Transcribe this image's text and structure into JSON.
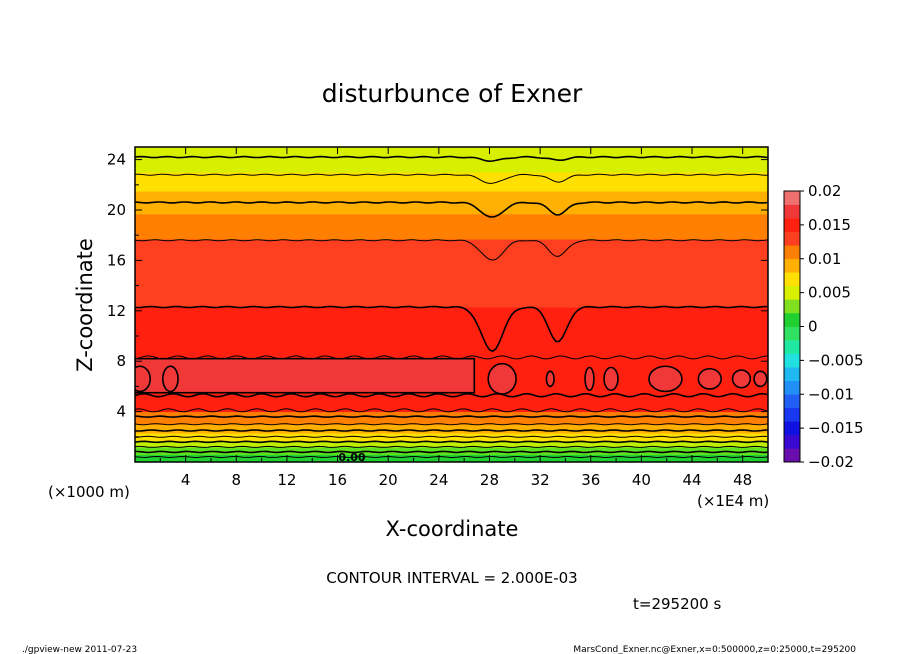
{
  "chart_data": {
    "type": "heatmap",
    "title": "disturbunce of Exner",
    "xlabel": "X-coordinate",
    "ylabel": "Z-coordinate",
    "x_unit": "(×1E4 m)",
    "y_unit": "(×1000 m)",
    "xlim": [
      0,
      50
    ],
    "ylim": [
      0,
      25
    ],
    "x_ticks": [
      "4",
      "8",
      "12",
      "16",
      "20",
      "24",
      "28",
      "32",
      "36",
      "40",
      "44",
      "48"
    ],
    "y_ticks": [
      "4",
      "8",
      "12",
      "16",
      "20",
      "24"
    ],
    "contour_interval_text": "CONTOUR INTERVAL = 2.000E-03",
    "time_text": "t=295200 s",
    "inline_label": "0.00",
    "colorbar": {
      "labels": [
        "0.02",
        "0.015",
        "0.01",
        "0.005",
        "0",
        "−0.005",
        "−0.01",
        "−0.015",
        "−0.02"
      ],
      "levels": [
        -0.02,
        -0.018,
        -0.016,
        -0.014,
        -0.012,
        -0.01,
        -0.008,
        -0.006,
        -0.004,
        -0.002,
        0,
        0.002,
        0.004,
        0.006,
        0.008,
        0.01,
        0.012,
        0.014,
        0.016,
        0.018,
        0.02
      ],
      "colors": [
        "#6a0dad",
        "#3a0ad0",
        "#1010e0",
        "#1838f0",
        "#2060f8",
        "#2090f8",
        "#20b8f0",
        "#20e0e0",
        "#20e8a0",
        "#30e060",
        "#20d030",
        "#80e020",
        "#d8f000",
        "#ffe000",
        "#ffb000",
        "#ff8000",
        "#ff4020",
        "#ff2010",
        "#f03838",
        "#f07070"
      ]
    },
    "background_bands": [
      {
        "z": [
          0,
          0.6
        ],
        "color": "#20d030"
      },
      {
        "z": [
          0.6,
          1.2
        ],
        "color": "#60e020"
      },
      {
        "z": [
          1.2,
          1.7
        ],
        "color": "#c0f000"
      },
      {
        "z": [
          1.7,
          2.3
        ],
        "color": "#ffe000"
      },
      {
        "z": [
          2.3,
          3.0
        ],
        "color": "#ffb000"
      },
      {
        "z": [
          3.0,
          4.0
        ],
        "color": "#ff8000"
      },
      {
        "z": [
          4.0,
          12.3
        ],
        "color": "#ff2010"
      },
      {
        "z": [
          12.3,
          17.7
        ],
        "color": "#ff4020"
      },
      {
        "z": [
          17.7,
          19.7
        ],
        "color": "#ff8000"
      },
      {
        "z": [
          19.7,
          21.5
        ],
        "color": "#ffb000"
      },
      {
        "z": [
          21.5,
          23.0
        ],
        "color": "#ffe000"
      },
      {
        "z": [
          23.0,
          25.0
        ],
        "color": "#d8f000"
      }
    ],
    "positive_band": {
      "x": [
        0,
        26.8
      ],
      "z": [
        5.5,
        8.2
      ],
      "color": "#f03838"
    },
    "positive_blobs": [
      {
        "x": 29.0,
        "z": 6.6,
        "rx": 1.1,
        "rz": 1.2
      },
      {
        "x": 32.8,
        "z": 6.6,
        "rx": 0.3,
        "rz": 0.6
      },
      {
        "x": 35.9,
        "z": 6.6,
        "rx": 0.35,
        "rz": 0.9
      },
      {
        "x": 37.6,
        "z": 6.6,
        "rx": 0.55,
        "rz": 0.9
      },
      {
        "x": 41.9,
        "z": 6.6,
        "rx": 1.3,
        "rz": 1.0
      },
      {
        "x": 45.4,
        "z": 6.6,
        "rx": 0.9,
        "rz": 0.8
      },
      {
        "x": 47.9,
        "z": 6.6,
        "rx": 0.7,
        "rz": 0.7
      },
      {
        "x": 49.4,
        "z": 6.6,
        "rx": 0.5,
        "rz": 0.6
      },
      {
        "x": 2.8,
        "z": 6.6,
        "rx": 0.6,
        "rz": 1.0
      },
      {
        "x": 0.4,
        "z": 6.6,
        "rx": 0.8,
        "rz": 1.0
      }
    ],
    "contours": [
      {
        "z": 24.2,
        "dip": 0.3
      },
      {
        "z": 22.8,
        "dip": 0.7
      },
      {
        "z": 20.6,
        "dip": 1.2
      },
      {
        "z": 17.6,
        "dip": 1.6
      },
      {
        "z": 12.3,
        "dip": 3.5
      },
      {
        "z": 8.3,
        "dip": 0
      },
      {
        "z": 5.3,
        "dip": 0
      },
      {
        "z": 4.1,
        "dip": 0
      },
      {
        "z": 3.6,
        "dip": 0
      },
      {
        "z": 3.0,
        "dip": 0
      },
      {
        "z": 2.5,
        "dip": 0
      },
      {
        "z": 2.0,
        "dip": 0
      },
      {
        "z": 1.6,
        "dip": 0
      },
      {
        "z": 1.2,
        "dip": 0
      },
      {
        "z": 0.8,
        "dip": 0
      },
      {
        "z": 0.4,
        "dip": 0
      }
    ]
  },
  "footer": {
    "left": "./gpview-new   2011-07-23",
    "right": "MarsCond_Exner.nc@Exner,x=0:500000,z=0:25000,t=295200"
  }
}
